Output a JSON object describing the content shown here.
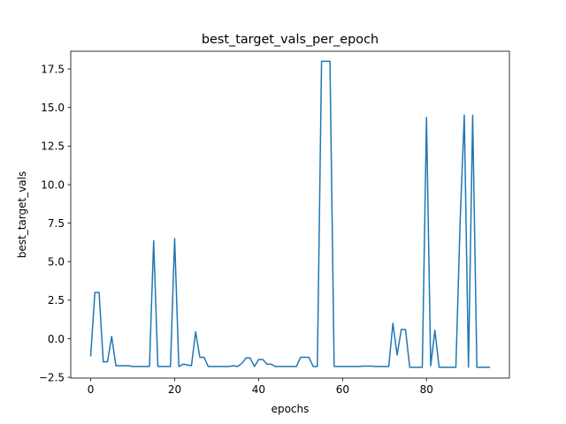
{
  "chart_data": {
    "type": "line",
    "title": "best_target_vals_per_epoch",
    "xlabel": "epochs",
    "ylabel": "best_target_vals",
    "xlim": [
      -4.75,
      99.75
    ],
    "ylim": [
      -2.55,
      18.65
    ],
    "xticks": [
      0,
      20,
      40,
      60,
      80
    ],
    "xtick_labels": [
      "0",
      "20",
      "40",
      "60",
      "80"
    ],
    "yticks": [
      -2.5,
      0.0,
      2.5,
      5.0,
      7.5,
      10.0,
      12.5,
      15.0,
      17.5
    ],
    "ytick_labels": [
      "−2.5",
      "0.0",
      "2.5",
      "5.0",
      "7.5",
      "10.0",
      "12.5",
      "15.0",
      "17.5"
    ],
    "grid": false,
    "series": [
      {
        "color": "#1f77b4",
        "x": [
          0,
          1,
          2,
          3,
          4,
          5,
          6,
          7,
          8,
          9,
          10,
          11,
          12,
          13,
          14,
          15,
          16,
          17,
          18,
          19,
          20,
          21,
          22,
          23,
          24,
          25,
          26,
          27,
          28,
          29,
          30,
          31,
          32,
          33,
          34,
          35,
          36,
          37,
          38,
          39,
          40,
          41,
          42,
          43,
          44,
          45,
          46,
          47,
          48,
          49,
          50,
          51,
          52,
          53,
          54,
          55,
          56,
          57,
          58,
          59,
          60,
          61,
          62,
          63,
          64,
          65,
          66,
          67,
          68,
          69,
          70,
          71,
          72,
          73,
          74,
          75,
          76,
          77,
          78,
          79,
          80,
          81,
          82,
          83,
          84,
          85,
          86,
          87,
          88,
          89,
          90,
          91,
          92,
          93,
          94,
          95
        ],
        "y": [
          -1.1,
          3.0,
          3.0,
          -1.5,
          -1.5,
          0.15,
          -1.75,
          -1.75,
          -1.75,
          -1.75,
          -1.8,
          -1.8,
          -1.8,
          -1.8,
          -1.8,
          6.35,
          -1.8,
          -1.8,
          -1.8,
          -1.8,
          6.5,
          -1.8,
          -1.65,
          -1.7,
          -1.75,
          0.45,
          -1.2,
          -1.2,
          -1.8,
          -1.8,
          -1.8,
          -1.8,
          -1.8,
          -1.8,
          -1.75,
          -1.8,
          -1.6,
          -1.25,
          -1.25,
          -1.8,
          -1.35,
          -1.35,
          -1.65,
          -1.65,
          -1.8,
          -1.8,
          -1.8,
          -1.8,
          -1.8,
          -1.8,
          -1.2,
          -1.2,
          -1.2,
          -1.8,
          -1.8,
          18.0,
          18.0,
          18.0,
          -1.8,
          -1.8,
          -1.8,
          -1.8,
          -1.8,
          -1.8,
          -1.8,
          -1.78,
          -1.78,
          -1.78,
          -1.8,
          -1.8,
          -1.8,
          -1.8,
          1.0,
          -1.05,
          0.6,
          0.6,
          -1.85,
          -1.85,
          -1.85,
          -1.85,
          14.35,
          -1.75,
          0.55,
          -1.85,
          -1.85,
          -1.85,
          -1.85,
          -1.85,
          7.5,
          14.5,
          -1.85,
          14.5,
          -1.85,
          -1.85,
          -1.85,
          -1.85
        ]
      }
    ]
  }
}
